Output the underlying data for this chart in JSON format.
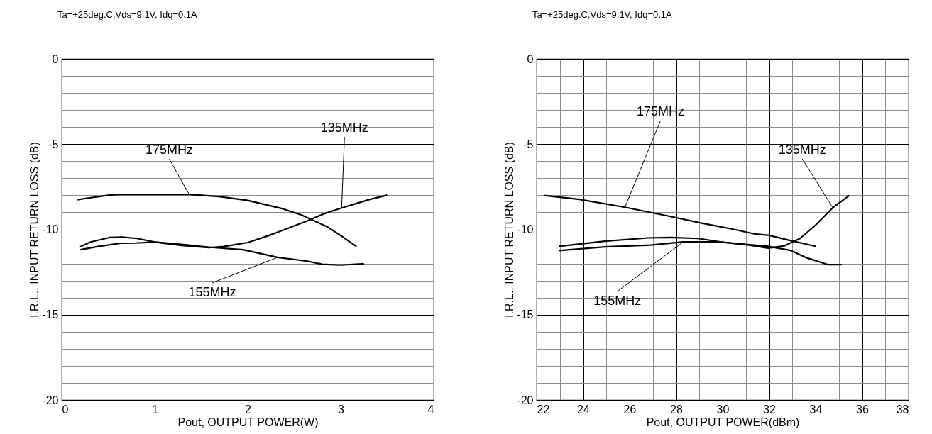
{
  "chart_data": [
    {
      "type": "line",
      "title": "Ta=+25deg.C,Vds=9.1V, Idq=0.1A",
      "xlabel": "Pout, OUTPUT POWER(W)",
      "ylabel": "I.R.L., INPUT RETURN LOSS (dB)",
      "xlim": [
        0,
        4
      ],
      "xticks": [
        0,
        {
          "value": 0.5,
          "label": null
        },
        1,
        {
          "value": 1.5,
          "label": null
        },
        2,
        {
          "value": 2.5,
          "label": null
        },
        3,
        {
          "value": 3.5,
          "label": null
        },
        4
      ],
      "ylim": [
        -20,
        0
      ],
      "yticks": [
        -20,
        {
          "value": -19,
          "label": null
        },
        {
          "value": -18,
          "label": null
        },
        {
          "value": -17,
          "label": null
        },
        {
          "value": -16,
          "label": null
        },
        -15,
        {
          "value": -14,
          "label": null
        },
        {
          "value": -13,
          "label": null
        },
        {
          "value": -12,
          "label": null
        },
        {
          "value": -11,
          "label": null
        },
        -10,
        {
          "value": -9,
          "label": null
        },
        {
          "value": -8,
          "label": null
        },
        {
          "value": -7,
          "label": null
        },
        {
          "value": -6,
          "label": null
        },
        -5,
        {
          "value": -4,
          "label": null
        },
        {
          "value": -3,
          "label": null
        },
        {
          "value": -2,
          "label": null
        },
        {
          "value": -1,
          "label": null
        },
        0
      ],
      "grid": true,
      "legend": false,
      "series": [
        {
          "name": "175MHz",
          "color": "#000000",
          "x": [
            0.17,
            0.26,
            0.5,
            0.6,
            1.37,
            1.69,
            2.0,
            2.37,
            2.58,
            2.85,
            3.0,
            3.17
          ],
          "values": [
            -8.26,
            -8.18,
            -8.0,
            -7.95,
            -7.95,
            -8.07,
            -8.3,
            -8.78,
            -9.16,
            -9.83,
            -10.36,
            -11.0
          ]
        },
        {
          "name": "135MHz",
          "color": "#000000",
          "x": [
            0.19,
            0.31,
            0.52,
            0.65,
            0.81,
            1.0,
            1.31,
            1.58,
            1.74,
            2.0,
            2.21,
            2.37,
            2.64,
            2.82,
            3.01,
            3.3,
            3.5
          ],
          "values": [
            -11.04,
            -10.74,
            -10.47,
            -10.45,
            -10.53,
            -10.74,
            -10.95,
            -11.07,
            -11.0,
            -10.77,
            -10.39,
            -10.06,
            -9.5,
            -9.08,
            -8.74,
            -8.26,
            -7.99
          ]
        },
        {
          "name": "155MHz",
          "color": "#000000",
          "x": [
            0.2,
            0.39,
            0.63,
            0.79,
            1.0,
            1.31,
            1.58,
            1.95,
            2.32,
            2.64,
            2.8,
            3.0,
            3.25
          ],
          "values": [
            -11.19,
            -11.0,
            -10.81,
            -10.8,
            -10.74,
            -10.89,
            -11.04,
            -11.19,
            -11.64,
            -11.86,
            -12.04,
            -12.09,
            -12.01
          ]
        }
      ]
    },
    {
      "type": "line",
      "title": "Ta=+25deg.C,Vds=9.1V, Idq=0.1A",
      "xlabel": "Pout, OUTPUT POWER(dBm)",
      "ylabel": "I.R.L., INPUT RETURN LOSS (dB)",
      "xlim": [
        22,
        38
      ],
      "xticks": [
        22,
        {
          "value": 23,
          "label": null
        },
        24,
        {
          "value": 25,
          "label": null
        },
        26,
        {
          "value": 27,
          "label": null
        },
        28,
        {
          "value": 29,
          "label": null
        },
        30,
        {
          "value": 31,
          "label": null
        },
        32,
        {
          "value": 33,
          "label": null
        },
        34,
        {
          "value": 35,
          "label": null
        },
        36,
        {
          "value": 37,
          "label": null
        },
        38
      ],
      "ylim": [
        -20,
        0
      ],
      "yticks": [
        -20,
        {
          "value": -19,
          "label": null
        },
        {
          "value": -18,
          "label": null
        },
        {
          "value": -17,
          "label": null
        },
        {
          "value": -16,
          "label": null
        },
        -15,
        {
          "value": -14,
          "label": null
        },
        {
          "value": -13,
          "label": null
        },
        {
          "value": -12,
          "label": null
        },
        {
          "value": -11,
          "label": null
        },
        -10,
        {
          "value": -9,
          "label": null
        },
        {
          "value": -8,
          "label": null
        },
        {
          "value": -7,
          "label": null
        },
        {
          "value": -6,
          "label": null
        },
        -5,
        {
          "value": -4,
          "label": null
        },
        {
          "value": -3,
          "label": null
        },
        {
          "value": -2,
          "label": null
        },
        {
          "value": -1,
          "label": null
        },
        0
      ],
      "grid": true,
      "legend": false,
      "series": [
        {
          "name": "175MHz",
          "color": "#000000",
          "x": [
            22.31,
            23.84,
            25.8,
            27.76,
            29.18,
            30.49,
            31.36,
            32.0,
            32.78,
            34.03
          ],
          "values": [
            -8.01,
            -8.24,
            -8.7,
            -9.24,
            -9.65,
            -10.0,
            -10.26,
            -10.35,
            -10.61,
            -11.0
          ]
        },
        {
          "name": "135MHz",
          "color": "#000000",
          "x": [
            22.96,
            24.93,
            26.78,
            27.76,
            28.96,
            30.05,
            31.14,
            31.96,
            32.67,
            33.33,
            33.98,
            34.74,
            35.45
          ],
          "values": [
            -10.99,
            -10.69,
            -10.5,
            -10.47,
            -10.53,
            -10.76,
            -10.92,
            -11.1,
            -10.96,
            -10.53,
            -9.77,
            -8.73,
            -8.01
          ]
        },
        {
          "name": "155MHz",
          "color": "#000000",
          "x": [
            22.96,
            24.93,
            26.89,
            28.31,
            29.83,
            30.92,
            31.96,
            32.89,
            33.65,
            34.52,
            35.12
          ],
          "values": [
            -11.24,
            -11.02,
            -10.92,
            -10.73,
            -10.73,
            -10.87,
            -10.99,
            -11.22,
            -11.68,
            -12.06,
            -12.06
          ]
        }
      ]
    }
  ]
}
